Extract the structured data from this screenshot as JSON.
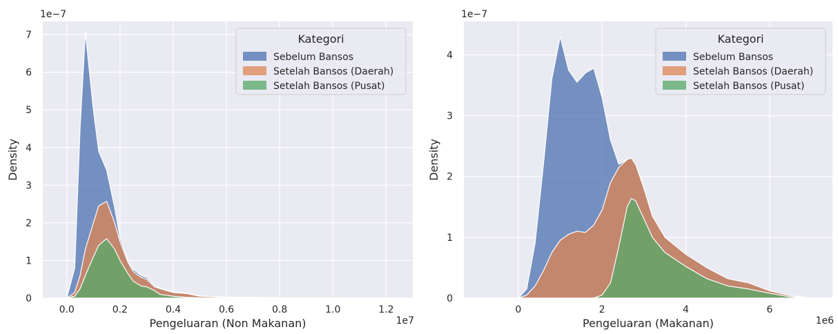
{
  "chart_data": [
    {
      "type": "area",
      "stacked": true,
      "title": "",
      "xlabel": "Pengeluaran (Non Makanan)",
      "ylabel": "Density",
      "x_offset_label": "1e7",
      "y_offset_label": "1e−7",
      "xlim": [
        -0.09,
        1.3
      ],
      "ylim": [
        0,
        7.35
      ],
      "xticks": [
        0.0,
        0.2,
        0.4,
        0.6,
        0.8,
        1.0,
        1.2
      ],
      "xtick_labels": [
        "0.0",
        "0.2",
        "0.4",
        "0.6",
        "0.8",
        "1.0",
        "1.2"
      ],
      "yticks": [
        0,
        1,
        2,
        3,
        4,
        5,
        6,
        7
      ],
      "ytick_labels": [
        "0",
        "1",
        "2",
        "3",
        "4",
        "5",
        "6",
        "7"
      ],
      "grid": true,
      "legend": {
        "title": "Kategori",
        "placement": "top-right"
      },
      "x": [
        0.0,
        0.03,
        0.05,
        0.07,
        0.1,
        0.12,
        0.15,
        0.18,
        0.2,
        0.23,
        0.25,
        0.28,
        0.3,
        0.33,
        0.35,
        0.4,
        0.45,
        0.5,
        0.6,
        0.8,
        1.0,
        1.2
      ],
      "series": [
        {
          "name": "Setelah Bansos (Pusat)",
          "color": "#55a868",
          "values": [
            0.0,
            0.05,
            0.25,
            0.6,
            1.1,
            1.4,
            1.58,
            1.3,
            1.0,
            0.65,
            0.45,
            0.32,
            0.3,
            0.2,
            0.1,
            0.05,
            0.02,
            0.01,
            0.0,
            0.0,
            0.0,
            0.0
          ]
        },
        {
          "name": "Setelah Bansos (Daerah)",
          "color": "#dd8452",
          "values": [
            0.0,
            0.15,
            0.6,
            1.3,
            2.0,
            2.45,
            2.57,
            2.0,
            1.5,
            0.95,
            0.7,
            0.55,
            0.5,
            0.3,
            0.25,
            0.15,
            0.12,
            0.05,
            0.02,
            0.01,
            0.0,
            0.0
          ]
        },
        {
          "name": "Sebelum Bansos",
          "color": "#4c72b0",
          "values": [
            0.0,
            0.8,
            4.5,
            7.05,
            5.0,
            3.9,
            3.4,
            2.4,
            1.6,
            1.0,
            0.76,
            0.6,
            0.55,
            0.33,
            0.27,
            0.17,
            0.13,
            0.06,
            0.03,
            0.01,
            0.005,
            0.0
          ]
        }
      ]
    },
    {
      "type": "area",
      "stacked": true,
      "title": "",
      "xlabel": "Pengeluaran (Makanan)",
      "ylabel": "Density",
      "x_offset_label": "1e6",
      "y_offset_label": "1e−7",
      "xlim": [
        -1.3,
        7.5
      ],
      "ylim": [
        0,
        4.55
      ],
      "xticks": [
        0,
        2,
        4,
        6
      ],
      "xtick_labels": [
        "0",
        "2",
        "4",
        "6"
      ],
      "yticks": [
        0,
        1,
        2,
        3,
        4
      ],
      "ytick_labels": [
        "0",
        "1",
        "2",
        "3",
        "4"
      ],
      "grid": true,
      "legend": {
        "title": "Kategori",
        "placement": "top-right"
      },
      "x": [
        -0.2,
        0.0,
        0.2,
        0.4,
        0.6,
        0.8,
        1.0,
        1.2,
        1.4,
        1.6,
        1.8,
        2.0,
        2.2,
        2.4,
        2.6,
        2.7,
        2.8,
        3.0,
        3.2,
        3.5,
        4.0,
        4.5,
        5.0,
        5.5,
        6.0,
        6.5,
        7.0
      ],
      "series": [
        {
          "name": "Setelah Bansos (Pusat)",
          "color": "#55a868",
          "values": [
            0.0,
            0.0,
            0.0,
            0.0,
            0.0,
            0.0,
            0.0,
            0.0,
            0.0,
            0.0,
            0.0,
            0.05,
            0.25,
            0.85,
            1.5,
            1.64,
            1.6,
            1.3,
            1.0,
            0.75,
            0.52,
            0.32,
            0.2,
            0.15,
            0.08,
            0.02,
            0.0
          ]
        },
        {
          "name": "Setelah Bansos (Daerah)",
          "color": "#dd8452",
          "values": [
            0.0,
            0.0,
            0.05,
            0.2,
            0.45,
            0.75,
            0.95,
            1.05,
            1.1,
            1.08,
            1.2,
            1.45,
            1.9,
            2.15,
            2.28,
            2.3,
            2.2,
            1.8,
            1.35,
            1.0,
            0.72,
            0.5,
            0.32,
            0.25,
            0.12,
            0.04,
            0.0
          ]
        },
        {
          "name": "Sebelum Bansos",
          "color": "#4c72b0",
          "values": [
            0.0,
            0.0,
            0.15,
            0.9,
            2.2,
            3.6,
            4.3,
            3.75,
            3.55,
            3.7,
            3.78,
            3.3,
            2.6,
            2.2,
            2.28,
            2.3,
            2.2,
            1.8,
            1.35,
            1.0,
            0.72,
            0.5,
            0.32,
            0.25,
            0.12,
            0.04,
            0.0
          ]
        }
      ]
    }
  ]
}
